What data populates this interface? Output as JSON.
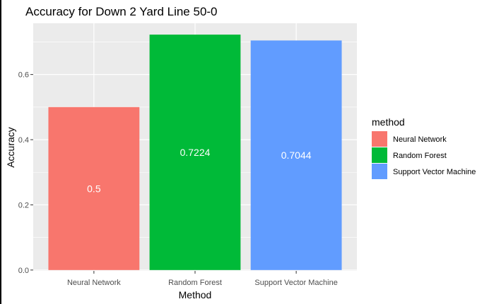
{
  "chart_data": {
    "type": "bar",
    "title": "Accuracy for Down 2 Yard Line 50-0",
    "xlabel": "Method",
    "ylabel": "Accuracy",
    "categories": [
      "Neural Network",
      "Random Forest",
      "Support Vector Machine"
    ],
    "values": [
      0.5,
      0.7224,
      0.7044
    ],
    "data_labels": [
      "0.5",
      "0.7224",
      "0.7044"
    ],
    "colors": [
      "#F8766D",
      "#00BA38",
      "#619CFF"
    ],
    "ylim": [
      -0.0025,
      0.7572
    ],
    "yticks": [
      0.0,
      0.2,
      0.4,
      0.6
    ],
    "ytick_labels": [
      "0.0",
      "0.2",
      "0.4",
      "0.6"
    ],
    "grid": true,
    "panel_background": "#EBEBEB",
    "legend": {
      "title": "method",
      "position": "right",
      "entries": [
        "Neural Network",
        "Random Forest",
        "Support Vector Machine"
      ]
    }
  }
}
